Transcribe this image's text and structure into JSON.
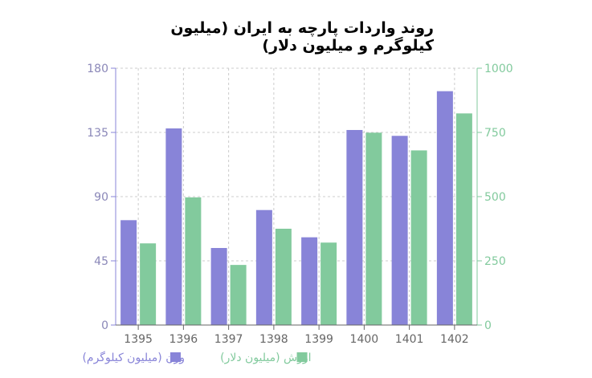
{
  "chart_data": {
    "type": "bar",
    "title": "روند واردات پارچه به ایران (میلیون کیلوگرم و میلیون دلار)",
    "categories": [
      "1395",
      "1396",
      "1397",
      "1398",
      "1399",
      "1400",
      "1401",
      "1402"
    ],
    "series": [
      {
        "name": "وزن (میلیون کیلوگرم)",
        "axis": "left",
        "color": "#8884d8",
        "values": [
          73.5,
          137.8,
          54,
          80.6,
          61.5,
          136.7,
          132.6,
          163.9
        ]
      },
      {
        "name": "ارزش (میلیون دلار)",
        "axis": "right",
        "color": "#82ca9d",
        "values": [
          318,
          497,
          234,
          375,
          321,
          749,
          680,
          824
        ]
      }
    ],
    "left_axis": {
      "range": [
        0,
        180
      ],
      "ticks": [
        "0",
        "45",
        "90",
        "135",
        "180"
      ],
      "color": "#8884d8"
    },
    "right_axis": {
      "range": [
        0,
        1000
      ],
      "ticks": [
        "0",
        "250",
        "500",
        "750",
        "1000"
      ],
      "color": "#82ca9d"
    },
    "grid": true,
    "legend_placement": "bottom"
  }
}
